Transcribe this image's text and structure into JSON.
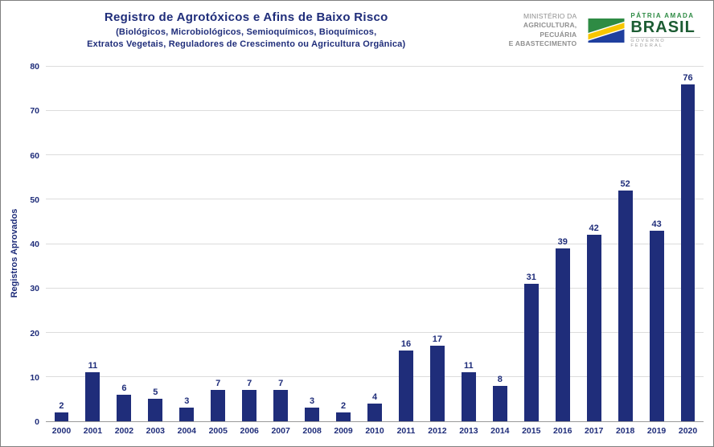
{
  "colors": {
    "navy": "#1F2D7A",
    "bar": "#1F2D7A",
    "gridline": "#dcdcdc",
    "axis": "#9a9a9a",
    "gov_green_light": "#2e8b44",
    "gov_green_dark": "#1c5c33"
  },
  "header": {
    "title": "Registro de Agrotóxicos e Afins de Baixo Risco",
    "subtitle_line1": "(Biológicos, Microbiológicos, Semioquímicos, Bioquímicos,",
    "subtitle_line2": "Extratos Vegetais, Reguladores de Crescimento ou Agricultura Orgânica)",
    "ministry": {
      "line1": "MINISTÉRIO DA",
      "line2": "AGRICULTURA, PECUÁRIA",
      "line3": "E ABASTECIMENTO"
    },
    "gov_logo": {
      "top": "PÁTRIA AMADA",
      "main": "BRASIL",
      "bottom": "GOVERNO FEDERAL"
    }
  },
  "chart_data": {
    "type": "bar",
    "title": "Registro de Agrotóxicos e Afins de Baixo Risco",
    "xlabel": "",
    "ylabel": "Registros Aprovados",
    "ylim": [
      0,
      80
    ],
    "y_ticks": [
      0,
      10,
      20,
      30,
      40,
      50,
      60,
      70,
      80
    ],
    "grid": true,
    "legend": "none",
    "categories": [
      "2000",
      "2001",
      "2002",
      "2003",
      "2004",
      "2005",
      "2006",
      "2007",
      "2008",
      "2009",
      "2010",
      "2011",
      "2012",
      "2013",
      "2014",
      "2015",
      "2016",
      "2017",
      "2018",
      "2019",
      "2020"
    ],
    "values": [
      2,
      11,
      6,
      5,
      3,
      7,
      7,
      7,
      3,
      2,
      4,
      16,
      17,
      11,
      8,
      31,
      39,
      42,
      52,
      43,
      76
    ]
  }
}
